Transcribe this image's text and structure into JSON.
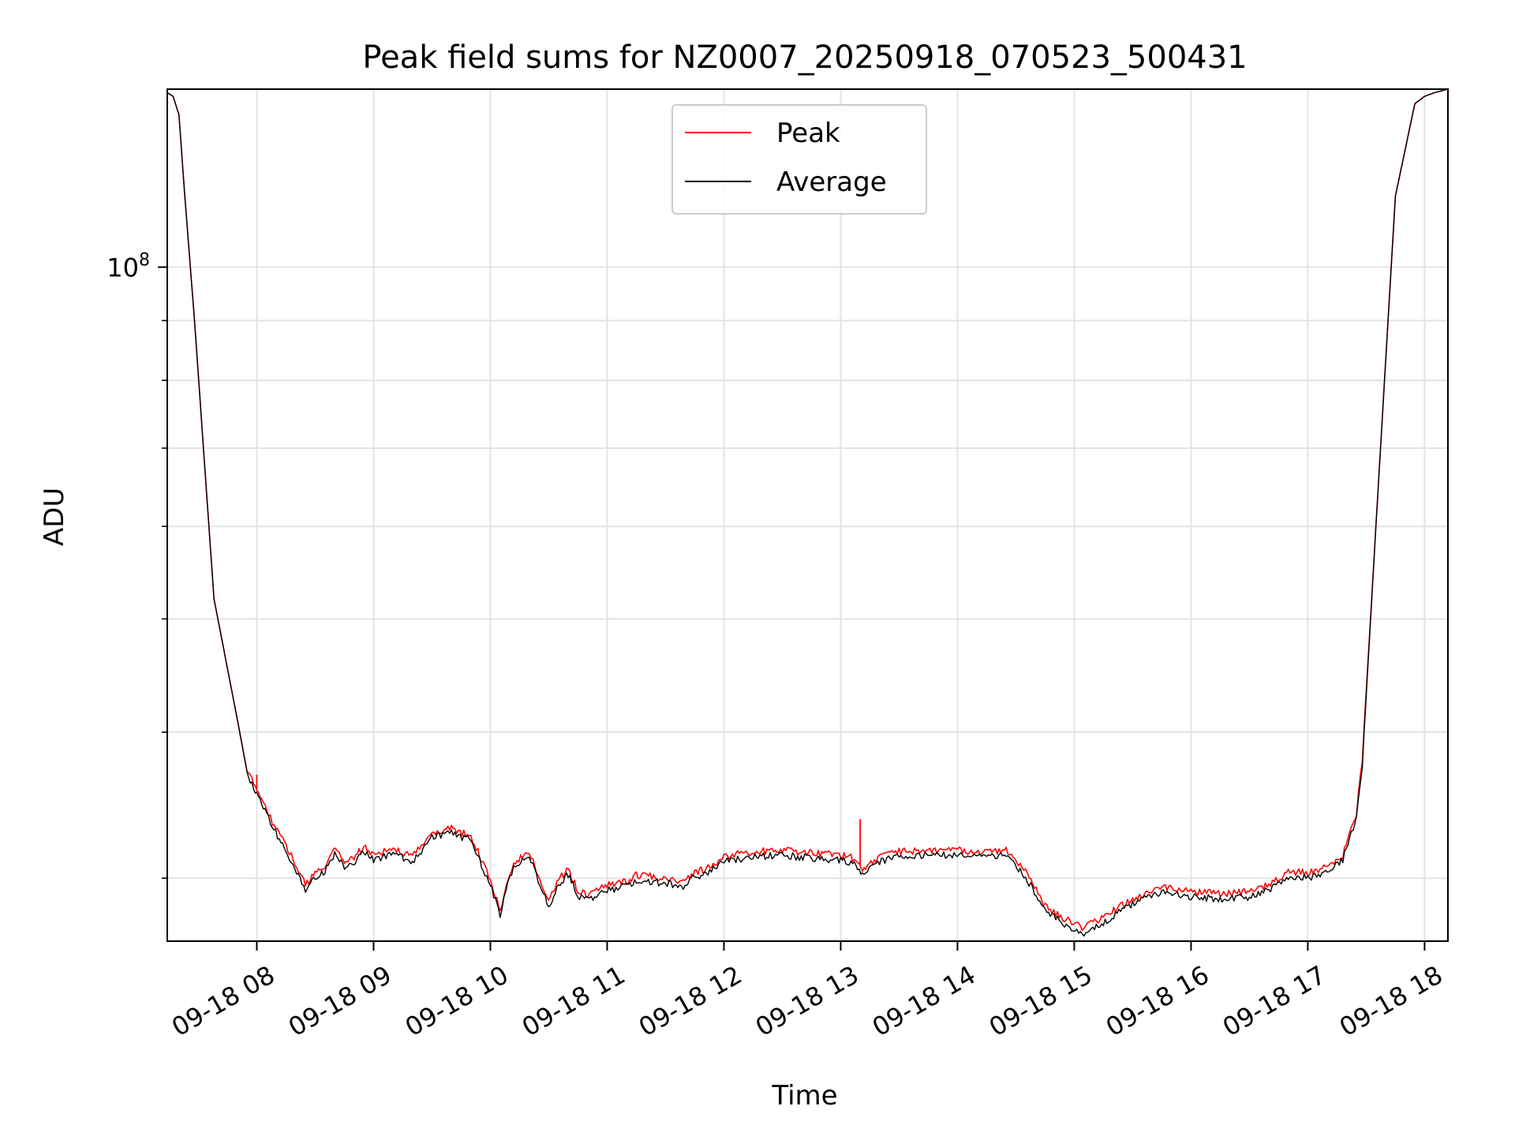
{
  "chart_data": {
    "type": "line",
    "title": "Peak field sums for NZ0007_20250918_070523_500431",
    "xlabel": "Time",
    "ylabel": "ADU",
    "y_scale": "log",
    "ylim": [
      26500000,
      142000000
    ],
    "xlim": [
      "2025-09-18 07:14",
      "2025-09-18 18:12"
    ],
    "grid": true,
    "legend_position": "top-center",
    "x_tick_labels": [
      "09-18 08",
      "09-18 09",
      "09-18 10",
      "09-18 11",
      "09-18 12",
      "09-18 13",
      "09-18 14",
      "09-18 15",
      "09-18 16",
      "09-18 17",
      "09-18 18"
    ],
    "x_ticks": [
      "2025-09-18 08:00",
      "2025-09-18 09:00",
      "2025-09-18 10:00",
      "2025-09-18 11:00",
      "2025-09-18 12:00",
      "2025-09-18 13:00",
      "2025-09-18 14:00",
      "2025-09-18 15:00",
      "2025-09-18 16:00",
      "2025-09-18 17:00",
      "2025-09-18 18:00"
    ],
    "y_major_ticks": [
      100000000
    ],
    "y_major_tick_labels": [
      "10^8"
    ],
    "y_minor_ticks": [
      30000000,
      40000000,
      50000000,
      60000000,
      70000000,
      80000000,
      90000000
    ],
    "x": [
      "2025-09-18 07:14",
      "2025-09-18 07:17",
      "2025-09-18 07:20",
      "2025-09-18 07:23",
      "2025-09-18 07:28",
      "2025-09-18 07:38",
      "2025-09-18 07:40",
      "2025-09-18 07:50",
      "2025-09-18 07:55",
      "2025-09-18 08:00",
      "2025-09-18 08:05",
      "2025-09-18 08:08",
      "2025-09-18 08:15",
      "2025-09-18 08:25",
      "2025-09-18 08:30",
      "2025-09-18 08:35",
      "2025-09-18 08:40",
      "2025-09-18 08:45",
      "2025-09-18 08:50",
      "2025-09-18 08:55",
      "2025-09-18 09:00",
      "2025-09-18 09:10",
      "2025-09-18 09:20",
      "2025-09-18 09:30",
      "2025-09-18 09:40",
      "2025-09-18 09:50",
      "2025-09-18 10:00",
      "2025-09-18 10:05",
      "2025-09-18 10:08",
      "2025-09-18 10:12",
      "2025-09-18 10:20",
      "2025-09-18 10:30",
      "2025-09-18 10:35",
      "2025-09-18 10:40",
      "2025-09-18 10:45",
      "2025-09-18 10:50",
      "2025-09-18 11:00",
      "2025-09-18 11:10",
      "2025-09-18 11:15",
      "2025-09-18 11:30",
      "2025-09-18 11:40",
      "2025-09-18 11:45",
      "2025-09-18 11:50",
      "2025-09-18 12:00",
      "2025-09-18 12:15",
      "2025-09-18 12:30",
      "2025-09-18 12:45",
      "2025-09-18 13:00",
      "2025-09-18 13:07",
      "2025-09-18 13:12",
      "2025-09-18 13:20",
      "2025-09-18 13:30",
      "2025-09-18 13:45",
      "2025-09-18 14:00",
      "2025-09-18 14:15",
      "2025-09-18 14:25",
      "2025-09-18 14:35",
      "2025-09-18 14:45",
      "2025-09-18 14:55",
      "2025-09-18 15:05",
      "2025-09-18 15:15",
      "2025-09-18 15:30",
      "2025-09-18 15:45",
      "2025-09-18 16:00",
      "2025-09-18 16:15",
      "2025-09-18 16:30",
      "2025-09-18 16:40",
      "2025-09-18 16:50",
      "2025-09-18 17:00",
      "2025-09-18 17:10",
      "2025-09-18 17:18",
      "2025-09-18 17:25",
      "2025-09-18 17:28",
      "2025-09-18 17:35",
      "2025-09-18 17:45",
      "2025-09-18 17:55",
      "2025-09-18 18:00",
      "2025-09-18 18:05",
      "2025-09-18 18:12"
    ],
    "series": [
      {
        "name": "Peak",
        "color": "#ff0000",
        "values": [
          141000000,
          140000000,
          135000000,
          115000000,
          90000000,
          52000000,
          50000000,
          41000000,
          37000000,
          35800000,
          34500000,
          33500000,
          32000000,
          29600000,
          30300000,
          30700000,
          31800000,
          31000000,
          31300000,
          31900000,
          31400000,
          31800000,
          31300000,
          32800000,
          33100000,
          32600000,
          29900000,
          28100000,
          29700000,
          30900000,
          31600000,
          28600000,
          29900000,
          30500000,
          29300000,
          29000000,
          29600000,
          29800000,
          30200000,
          30000000,
          29800000,
          30400000,
          30500000,
          31300000,
          31600000,
          31700000,
          31500000,
          31400000,
          31200000,
          30500000,
          31300000,
          31600000,
          31700000,
          31700000,
          31600000,
          31700000,
          30400000,
          28400000,
          27700000,
          27200000,
          27800000,
          28800000,
          29500000,
          29200000,
          29100000,
          29200000,
          29600000,
          30400000,
          30300000,
          30700000,
          31400000,
          34000000,
          38000000,
          60000000,
          115000000,
          138000000,
          140000000,
          141000000,
          142000000
        ]
      },
      {
        "name": "Average",
        "color": "#000000",
        "values": [
          141000000,
          140000000,
          135000000,
          115000000,
          90000000,
          52000000,
          50000000,
          41000000,
          37000000,
          35300000,
          34300000,
          33200000,
          31700000,
          29300000,
          30000000,
          30400000,
          31500000,
          30700000,
          31000000,
          31600000,
          31100000,
          31500000,
          31000000,
          32500000,
          32800000,
          32300000,
          29600000,
          27800000,
          29400000,
          30600000,
          31300000,
          28300000,
          29600000,
          30200000,
          29000000,
          28700000,
          29300000,
          29500000,
          29900000,
          29700000,
          29500000,
          30100000,
          30200000,
          31000000,
          31300000,
          31400000,
          31200000,
          31100000,
          30900000,
          30200000,
          31000000,
          31300000,
          31400000,
          31400000,
          31300000,
          31400000,
          30100000,
          28100000,
          27400000,
          26900000,
          27500000,
          28500000,
          29200000,
          28900000,
          28800000,
          28900000,
          29300000,
          30100000,
          30000000,
          30400000,
          31100000,
          33700000,
          37500000,
          60000000,
          115000000,
          138000000,
          140000000,
          141000000,
          142000000
        ]
      }
    ],
    "annotations": [
      {
        "series": "Peak",
        "x": "2025-09-18 08:00",
        "value": 36800000,
        "note": "spike"
      },
      {
        "series": "Peak",
        "x": "2025-09-18 13:10",
        "value": 33700000,
        "note": "spike"
      }
    ]
  }
}
